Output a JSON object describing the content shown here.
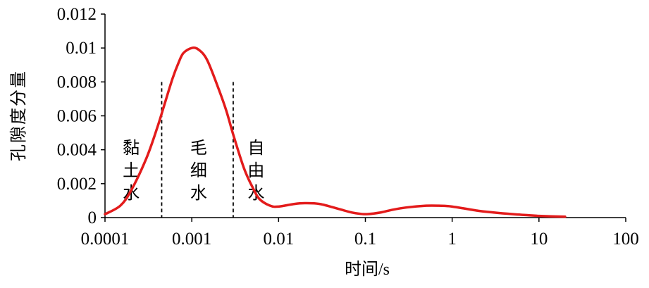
{
  "chart_data": {
    "type": "line",
    "xlabel": "时间/s",
    "ylabel": "孔隙度分量",
    "xscale": "log",
    "xlim": [
      0.0001,
      100
    ],
    "ylim": [
      0,
      0.012
    ],
    "x_ticks": [
      "0.0001",
      "0.001",
      "0.01",
      "0.1",
      "1",
      "10",
      "100"
    ],
    "y_ticks": [
      "0",
      "0.002",
      "0.004",
      "0.006",
      "0.008",
      "0.01",
      "0.012"
    ],
    "grid": false,
    "legend": "none",
    "series": [
      {
        "color": "#e31b1b",
        "x": [
          0.0001,
          0.00015,
          0.0002,
          0.0003,
          0.0004,
          0.0005,
          0.0006,
          0.0007,
          0.0008,
          0.001,
          0.0012,
          0.0015,
          0.002,
          0.0025,
          0.003,
          0.004,
          0.005,
          0.006,
          0.008,
          0.01,
          0.015,
          0.02,
          0.03,
          0.05,
          0.07,
          0.1,
          0.15,
          0.2,
          0.3,
          0.5,
          0.7,
          1,
          2,
          3,
          5,
          7,
          10,
          20
        ],
        "y": [
          0.0002,
          0.0007,
          0.0016,
          0.0035,
          0.0053,
          0.0069,
          0.0082,
          0.0091,
          0.0097,
          0.01,
          0.0099,
          0.0093,
          0.0077,
          0.0063,
          0.0049,
          0.0029,
          0.0018,
          0.0011,
          0.0007,
          0.00065,
          0.0008,
          0.00085,
          0.0008,
          0.0005,
          0.0003,
          0.0002,
          0.0003,
          0.00045,
          0.0006,
          0.0007,
          0.0007,
          0.00065,
          0.0004,
          0.0003,
          0.0002,
          0.00015,
          0.0001,
          5e-05
        ]
      }
    ],
    "divider_x": [
      0.00045,
      0.003
    ],
    "divider_height": 0.008,
    "zones": [
      {
        "label": [
          "黏",
          "土",
          "水"
        ],
        "x": 0.0002
      },
      {
        "label": [
          "毛",
          "细",
          "水"
        ],
        "x": 0.0012
      },
      {
        "label": [
          "自",
          "由",
          "水"
        ],
        "x": 0.0055
      }
    ]
  }
}
